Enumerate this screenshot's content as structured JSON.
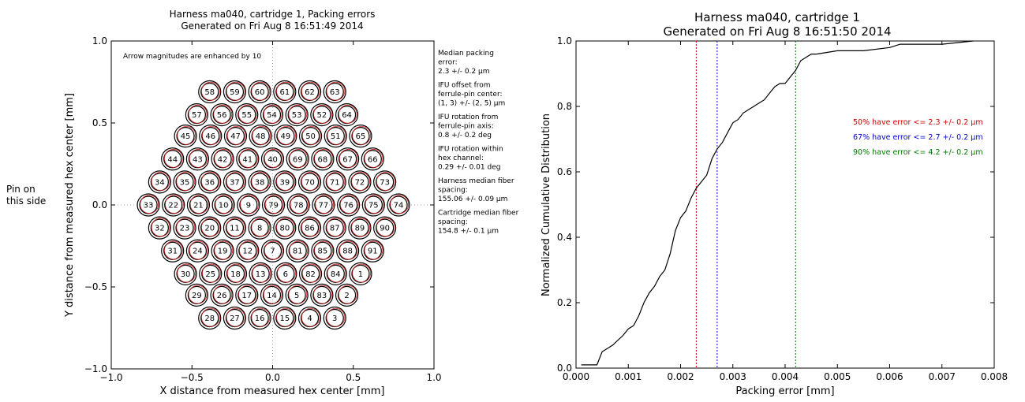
{
  "left_chart": {
    "title_line1": "Harness ma040, cartridge 1, Packing errors",
    "title_line2": "Generated on Fri Aug  8 16:51:49 2014",
    "xlabel": "X distance from measured hex center [mm]",
    "ylabel": "Y distance from measured hex center [mm]",
    "pin_label_line1": "Pin on",
    "pin_label_line2": "this side",
    "arrow_note": "Arrow magnitudes are enhanced by 10",
    "side_notes": [
      "Median packing",
      "error:",
      " 2.3 +/- 0.2 μm",
      "",
      "IFU offset from",
      "ferrule-pin center:",
      " (1, 3) +/- (2, 5) μm",
      "",
      "IFU rotation from",
      "ferrule-pin axis:",
      " 0.8 +/- 0.2 deg",
      "",
      "IFU rotation within",
      "hex channel:",
      " 0.29 +/- 0.01 deg",
      "",
      "Harness median fiber",
      "spacing:",
      " 155.06 +/- 0.09 μm",
      "",
      "Cartridge median fiber",
      "spacing:",
      " 154.8 +/- 0.1 μm"
    ],
    "xticks": [
      "−1.0",
      "−0.5",
      "0.0",
      "0.5",
      "1.0"
    ],
    "yticks": [
      "1.0",
      "0.5",
      "0.0",
      "−0.5",
      "−1.0"
    ]
  },
  "right_chart": {
    "title_line1": "Harness ma040, cartridge 1",
    "title_line2": "Generated on Fri Aug  8 16:51:50 2014",
    "xlabel": "Packing error [mm]",
    "ylabel": "Normalized Cumulative Distribution",
    "xticks": [
      "0.000",
      "0.001",
      "0.002",
      "0.003",
      "0.004",
      "0.005",
      "0.006",
      "0.007",
      "0.008"
    ],
    "yticks": [
      "1.0",
      "0.8",
      "0.6",
      "0.4",
      "0.2",
      "0.0"
    ],
    "annotations": [
      {
        "text": "50% have error <= 2.3 +/- 0.2 μm",
        "color": "#cc0000"
      },
      {
        "text": "67% have error <= 2.7 +/- 0.2 μm",
        "color": "#0000cc"
      },
      {
        "text": "90% have error <= 4.2 +/- 0.2 μm",
        "color": "#007700"
      }
    ]
  },
  "chart_data": [
    {
      "type": "scatter",
      "title": "Harness ma040, cartridge 1, Packing errors",
      "subtitle": "Generated on Fri Aug  8 16:51:49 2014",
      "xlabel": "X distance from measured hex center [mm]",
      "ylabel": "Y distance from measured hex center [mm]",
      "xlim": [
        -1.0,
        1.0
      ],
      "ylim": [
        -1.0,
        1.0
      ],
      "grid": "dotted crosshair at 0",
      "fiber_rows": [
        {
          "y": 0.69,
          "x_start": -0.39,
          "labels": [
            "58",
            "59",
            "60",
            "61",
            "62",
            "63"
          ]
        },
        {
          "y": 0.55,
          "x_start": -0.47,
          "labels": [
            "57",
            "56",
            "55",
            "54",
            "53",
            "52",
            "64"
          ]
        },
        {
          "y": 0.42,
          "x_start": -0.54,
          "labels": [
            "45",
            "46",
            "47",
            "48",
            "49",
            "50",
            "51",
            "65"
          ]
        },
        {
          "y": 0.28,
          "x_start": -0.62,
          "labels": [
            "44",
            "43",
            "42",
            "41",
            "40",
            "69",
            "68",
            "67",
            "66"
          ]
        },
        {
          "y": 0.14,
          "x_start": -0.7,
          "labels": [
            "34",
            "35",
            "36",
            "37",
            "38",
            "39",
            "70",
            "71",
            "72",
            "73"
          ]
        },
        {
          "y": 0.0,
          "x_start": -0.77,
          "labels": [
            "33",
            "22",
            "21",
            "10",
            "9",
            "79",
            "78",
            "77",
            "76",
            "75",
            "74"
          ]
        },
        {
          "y": -0.14,
          "x_start": -0.7,
          "labels": [
            "32",
            "23",
            "20",
            "11",
            "8",
            "80",
            "86",
            "87",
            "89",
            "90"
          ]
        },
        {
          "y": -0.28,
          "x_start": -0.62,
          "labels": [
            "31",
            "24",
            "19",
            "12",
            "7",
            "81",
            "85",
            "88",
            "91"
          ]
        },
        {
          "y": -0.42,
          "x_start": -0.54,
          "labels": [
            "30",
            "25",
            "18",
            "13",
            "6",
            "82",
            "84",
            "1"
          ]
        },
        {
          "y": -0.55,
          "x_start": -0.47,
          "labels": [
            "29",
            "26",
            "17",
            "14",
            "5",
            "83",
            "2"
          ]
        },
        {
          "y": -0.69,
          "x_start": -0.39,
          "labels": [
            "28",
            "27",
            "16",
            "15",
            "4",
            "3"
          ]
        }
      ]
    },
    {
      "type": "line",
      "title": "Harness ma040, cartridge 1",
      "subtitle": "Generated on Fri Aug  8 16:51:50 2014",
      "xlabel": "Packing error [mm]",
      "ylabel": "Normalized Cumulative Distribution",
      "xlim": [
        0.0,
        0.008
      ],
      "ylim": [
        0.0,
        1.0
      ],
      "series": [
        {
          "color": "#000000",
          "x": [
            0.0001,
            0.0004,
            0.0005,
            0.0007,
            0.0009,
            0.001,
            0.0011,
            0.0012,
            0.0013,
            0.0014,
            0.0015,
            0.0016,
            0.0017,
            0.0018,
            0.0019,
            0.002,
            0.0021,
            0.0022,
            0.0023,
            0.0024,
            0.0025,
            0.0026,
            0.0027,
            0.0028,
            0.0029,
            0.003,
            0.0031,
            0.0032,
            0.0033,
            0.0034,
            0.0035,
            0.0036,
            0.0037,
            0.0038,
            0.0039,
            0.004,
            0.0041,
            0.0042,
            0.0043,
            0.0044,
            0.0045,
            0.0046,
            0.005,
            0.0055,
            0.006,
            0.0062,
            0.007,
            0.0076
          ],
          "y": [
            0.01,
            0.01,
            0.05,
            0.07,
            0.1,
            0.12,
            0.13,
            0.16,
            0.2,
            0.23,
            0.25,
            0.28,
            0.3,
            0.35,
            0.42,
            0.46,
            0.48,
            0.52,
            0.55,
            0.57,
            0.59,
            0.64,
            0.67,
            0.69,
            0.72,
            0.75,
            0.76,
            0.78,
            0.79,
            0.8,
            0.81,
            0.82,
            0.84,
            0.86,
            0.87,
            0.87,
            0.89,
            0.91,
            0.94,
            0.95,
            0.96,
            0.96,
            0.97,
            0.97,
            0.98,
            0.99,
            0.99,
            1.0
          ]
        }
      ],
      "vlines": [
        {
          "x": 0.0023,
          "color": "#cc0000"
        },
        {
          "x": 0.0027,
          "color": "#0000cc"
        },
        {
          "x": 0.0042,
          "color": "#007700"
        }
      ]
    }
  ]
}
